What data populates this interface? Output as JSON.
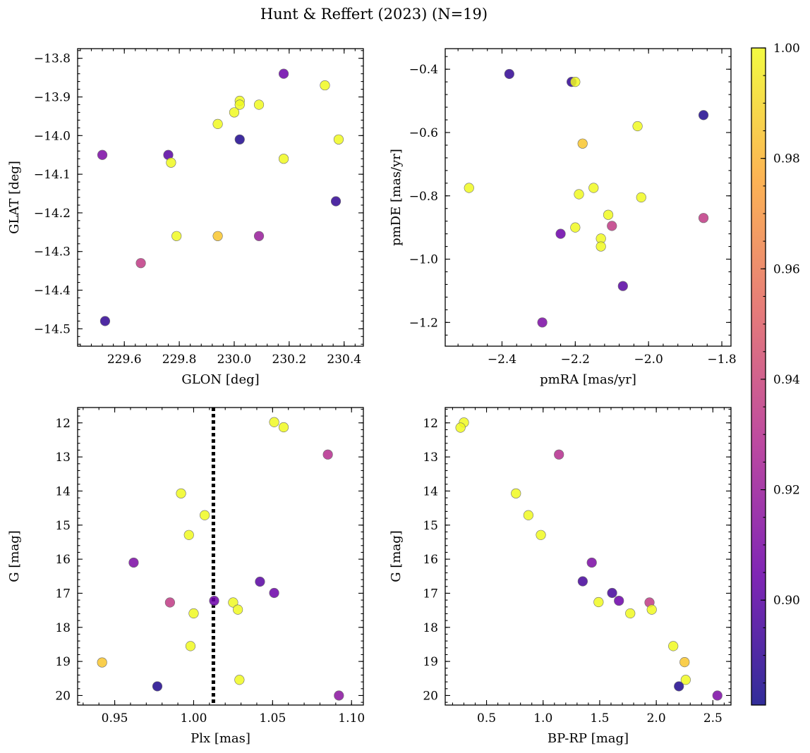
{
  "chart_data": {
    "type": "scatter",
    "title": "Hunt & Reffert (2023) (N=19)",
    "colormap": "plasma",
    "colormap_stops": [
      "#0d0887",
      "#6a00a8",
      "#b12a90",
      "#e16462",
      "#fca636",
      "#f0f921"
    ],
    "colorbar": {
      "range": [
        0.881,
        1.0
      ],
      "ticks": [
        0.9,
        0.92,
        0.94,
        0.96,
        0.98,
        1.0
      ],
      "tick_labels": [
        "0.90",
        "0.92",
        "0.94",
        "0.96",
        "0.98",
        "1.00"
      ]
    },
    "panels": [
      {
        "name": "glon-glat",
        "xlabel": "GLON [deg]",
        "ylabel": "GLAT [deg]",
        "xlim": [
          229.43,
          230.47
        ],
        "ylim": [
          -14.545,
          -13.775
        ],
        "y_inverted": false,
        "xticks": [
          229.6,
          229.8,
          230.0,
          230.2,
          230.4
        ],
        "xtick_labels": [
          "229.6",
          "229.8",
          "230.0",
          "230.2",
          "230.4"
        ],
        "yticks": [
          -13.8,
          -13.9,
          -14.0,
          -14.1,
          -14.2,
          -14.3,
          -14.4,
          -14.5
        ],
        "ytick_labels": [
          "−13.8",
          "−13.9",
          "−14.0",
          "−14.1",
          "−14.2",
          "−14.3",
          "−14.4",
          "−14.5"
        ],
        "points": [
          {
            "x": 230.18,
            "y": -13.84,
            "c": 0.905
          },
          {
            "x": 230.33,
            "y": -13.87,
            "c": 1.0
          },
          {
            "x": 230.02,
            "y": -13.91,
            "c": 1.0
          },
          {
            "x": 230.02,
            "y": -13.92,
            "c": 1.0
          },
          {
            "x": 230.09,
            "y": -13.92,
            "c": 1.0
          },
          {
            "x": 230.0,
            "y": -13.94,
            "c": 1.0
          },
          {
            "x": 229.94,
            "y": -13.97,
            "c": 1.0
          },
          {
            "x": 230.02,
            "y": -14.01,
            "c": 0.885
          },
          {
            "x": 230.38,
            "y": -14.01,
            "c": 1.0
          },
          {
            "x": 229.52,
            "y": -14.05,
            "c": 0.91
          },
          {
            "x": 229.76,
            "y": -14.05,
            "c": 0.9
          },
          {
            "x": 229.77,
            "y": -14.07,
            "c": 1.0
          },
          {
            "x": 230.18,
            "y": -14.06,
            "c": 1.0
          },
          {
            "x": 230.37,
            "y": -14.17,
            "c": 0.89
          },
          {
            "x": 229.79,
            "y": -14.26,
            "c": 1.0
          },
          {
            "x": 229.94,
            "y": -14.26,
            "c": 0.985
          },
          {
            "x": 230.09,
            "y": -14.26,
            "c": 0.92
          },
          {
            "x": 229.66,
            "y": -14.33,
            "c": 0.935
          },
          {
            "x": 229.53,
            "y": -14.48,
            "c": 0.89
          }
        ]
      },
      {
        "name": "proper-motion",
        "xlabel": "pmRA [mas/yr]",
        "ylabel": "pmDE [mas/yr]",
        "xlim": [
          -2.555,
          -1.775
        ],
        "ylim": [
          -1.275,
          -0.335
        ],
        "y_inverted": false,
        "xticks": [
          -2.4,
          -2.2,
          -2.0,
          -1.8
        ],
        "xtick_labels": [
          "−2.4",
          "−2.2",
          "−2.0",
          "−1.8"
        ],
        "yticks": [
          -0.4,
          -0.6,
          -0.8,
          -1.0,
          -1.2
        ],
        "ytick_labels": [
          "−0.4",
          "−0.6",
          "−0.8",
          "−1.0",
          "−1.2"
        ],
        "points": [
          {
            "x": -2.38,
            "y": -0.415,
            "c": 0.89
          },
          {
            "x": -2.21,
            "y": -0.44,
            "c": 0.89
          },
          {
            "x": -2.2,
            "y": -0.44,
            "c": 1.0
          },
          {
            "x": -1.85,
            "y": -0.545,
            "c": 0.885
          },
          {
            "x": -2.03,
            "y": -0.58,
            "c": 1.0
          },
          {
            "x": -2.18,
            "y": -0.635,
            "c": 0.985
          },
          {
            "x": -2.49,
            "y": -0.775,
            "c": 1.0
          },
          {
            "x": -2.15,
            "y": -0.775,
            "c": 1.0
          },
          {
            "x": -2.19,
            "y": -0.795,
            "c": 1.0
          },
          {
            "x": -2.02,
            "y": -0.805,
            "c": 1.0
          },
          {
            "x": -2.11,
            "y": -0.86,
            "c": 1.0
          },
          {
            "x": -1.85,
            "y": -0.87,
            "c": 0.935
          },
          {
            "x": -2.1,
            "y": -0.895,
            "c": 0.935
          },
          {
            "x": -2.2,
            "y": -0.9,
            "c": 1.0
          },
          {
            "x": -2.24,
            "y": -0.92,
            "c": 0.905
          },
          {
            "x": -2.13,
            "y": -0.935,
            "c": 1.0
          },
          {
            "x": -2.13,
            "y": -0.96,
            "c": 1.0
          },
          {
            "x": -2.07,
            "y": -1.085,
            "c": 0.9
          },
          {
            "x": -2.29,
            "y": -1.2,
            "c": 0.91
          }
        ]
      },
      {
        "name": "plx-g",
        "xlabel": "Plx [mas]",
        "ylabel": "G [mag]",
        "xlim": [
          0.9265,
          1.1075
        ],
        "ylim": [
          20.28,
          11.55
        ],
        "y_inverted": true,
        "xticks": [
          0.95,
          1.0,
          1.05,
          1.1
        ],
        "xtick_labels": [
          "0.95",
          "1.00",
          "1.05",
          "1.10"
        ],
        "yticks": [
          12,
          13,
          14,
          15,
          16,
          17,
          18,
          19,
          20
        ],
        "ytick_labels": [
          "12",
          "13",
          "14",
          "15",
          "16",
          "17",
          "18",
          "19",
          "20"
        ],
        "vline": 1.0125,
        "points": [
          {
            "x": 1.051,
            "y": 11.98,
            "c": 1.0
          },
          {
            "x": 1.057,
            "y": 12.13,
            "c": 1.0
          },
          {
            "x": 1.085,
            "y": 12.93,
            "c": 0.93
          },
          {
            "x": 0.992,
            "y": 14.07,
            "c": 1.0
          },
          {
            "x": 1.007,
            "y": 14.71,
            "c": 1.0
          },
          {
            "x": 0.997,
            "y": 15.29,
            "c": 1.0
          },
          {
            "x": 0.962,
            "y": 16.1,
            "c": 0.91
          },
          {
            "x": 1.042,
            "y": 16.66,
            "c": 0.9
          },
          {
            "x": 1.051,
            "y": 16.99,
            "c": 0.905
          },
          {
            "x": 0.985,
            "y": 17.27,
            "c": 0.935
          },
          {
            "x": 1.013,
            "y": 17.22,
            "c": 0.905
          },
          {
            "x": 1.025,
            "y": 17.27,
            "c": 1.0
          },
          {
            "x": 1.028,
            "y": 17.48,
            "c": 1.0
          },
          {
            "x": 1.0,
            "y": 17.59,
            "c": 1.0
          },
          {
            "x": 0.998,
            "y": 18.55,
            "c": 1.0
          },
          {
            "x": 0.942,
            "y": 19.03,
            "c": 0.985
          },
          {
            "x": 1.029,
            "y": 19.54,
            "c": 1.0
          },
          {
            "x": 0.977,
            "y": 19.73,
            "c": 0.885
          },
          {
            "x": 1.092,
            "y": 20.0,
            "c": 0.915
          }
        ]
      },
      {
        "name": "cmd",
        "xlabel": "BP-RP [mag]",
        "ylabel": "G [mag]",
        "xlim": [
          0.135,
          2.66
        ],
        "ylim": [
          20.28,
          11.55
        ],
        "y_inverted": true,
        "xticks": [
          0.5,
          1.0,
          1.5,
          2.0,
          2.5
        ],
        "xtick_labels": [
          "0.5",
          "1.0",
          "1.5",
          "2.0",
          "2.5"
        ],
        "yticks": [
          12,
          13,
          14,
          15,
          16,
          17,
          18,
          19,
          20
        ],
        "ytick_labels": [
          "12",
          "13",
          "14",
          "15",
          "16",
          "17",
          "18",
          "19",
          "20"
        ],
        "points": [
          {
            "x": 0.3,
            "y": 11.99,
            "c": 1.0
          },
          {
            "x": 0.27,
            "y": 12.14,
            "c": 1.0
          },
          {
            "x": 1.14,
            "y": 12.93,
            "c": 0.93
          },
          {
            "x": 0.76,
            "y": 14.07,
            "c": 1.0
          },
          {
            "x": 0.87,
            "y": 14.71,
            "c": 1.0
          },
          {
            "x": 0.98,
            "y": 15.29,
            "c": 1.0
          },
          {
            "x": 1.43,
            "y": 16.1,
            "c": 0.91
          },
          {
            "x": 1.35,
            "y": 16.65,
            "c": 0.895
          },
          {
            "x": 1.61,
            "y": 16.99,
            "c": 0.895
          },
          {
            "x": 1.67,
            "y": 17.22,
            "c": 0.905
          },
          {
            "x": 1.49,
            "y": 17.26,
            "c": 1.0
          },
          {
            "x": 1.94,
            "y": 17.27,
            "c": 0.935
          },
          {
            "x": 1.96,
            "y": 17.48,
            "c": 1.0
          },
          {
            "x": 1.77,
            "y": 17.59,
            "c": 1.0
          },
          {
            "x": 2.15,
            "y": 18.55,
            "c": 1.0
          },
          {
            "x": 2.25,
            "y": 19.02,
            "c": 0.985
          },
          {
            "x": 2.26,
            "y": 19.54,
            "c": 1.0
          },
          {
            "x": 2.2,
            "y": 19.73,
            "c": 0.885
          },
          {
            "x": 2.54,
            "y": 20.0,
            "c": 0.91
          }
        ]
      }
    ]
  }
}
